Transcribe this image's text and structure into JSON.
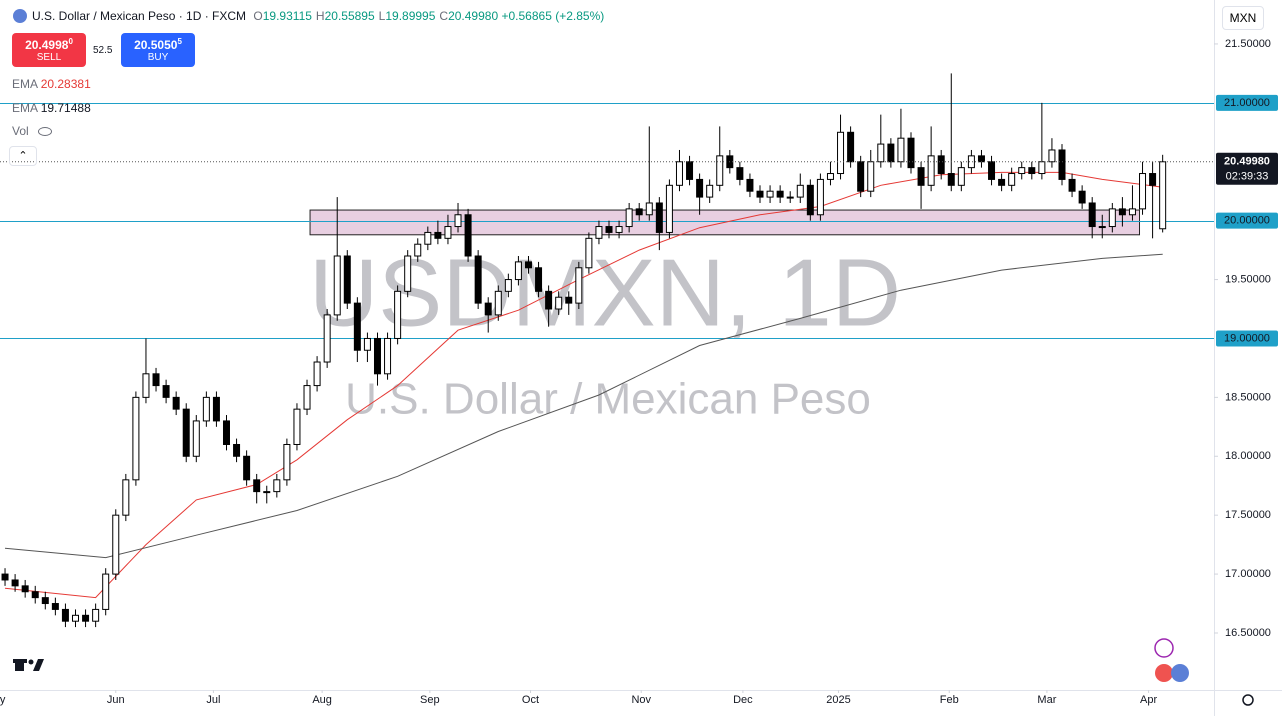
{
  "chart_data": {
    "type": "candlestick",
    "title": "USDMXN, 1D",
    "subtitle": "U.S. Dollar / Mexican Peso",
    "header": {
      "symbol": "U.S. Dollar / Mexican Peso · 1D · FXCM",
      "ohlc": [
        {
          "key": "O",
          "label": "19.93115"
        },
        {
          "key": "H",
          "label": "20.55895"
        },
        {
          "key": "L",
          "label": "19.89995"
        },
        {
          "key": "C",
          "label": "20.49980"
        }
      ],
      "change": "+0.56865",
      "change_pct": "(+2.85%)",
      "currency": "MXN"
    },
    "trade": {
      "sell": {
        "price": "20.4998",
        "pip": "0",
        "label": "SELL"
      },
      "spread": "52.5",
      "buy": {
        "price": "20.5050",
        "pip": "5",
        "label": "BUY"
      }
    },
    "indicators": {
      "vol": "Vol"
    },
    "open": [
      17.0,
      16.95,
      16.9,
      16.85,
      16.8,
      16.75,
      16.7,
      16.6,
      16.65,
      16.6,
      16.7,
      17.0,
      17.5,
      17.8,
      18.5,
      18.7,
      18.6,
      18.5,
      18.4,
      18.0,
      18.3,
      18.5,
      18.3,
      18.1,
      18.0,
      17.8,
      17.7,
      17.7,
      17.8,
      18.1,
      18.4,
      18.6,
      18.8,
      19.2,
      19.7,
      19.3,
      18.9,
      19.0,
      18.7,
      19.0,
      19.4,
      19.7,
      19.8,
      19.9,
      19.85,
      19.95,
      20.05,
      19.7,
      19.3,
      19.2,
      19.4,
      19.5,
      19.65,
      19.6,
      19.4,
      19.25,
      19.35,
      19.3,
      19.6,
      19.85,
      19.95,
      19.9,
      19.95,
      20.1,
      20.05,
      20.15,
      19.9,
      20.3,
      20.5,
      20.35,
      20.2,
      20.3,
      20.55,
      20.45,
      20.35,
      20.25,
      20.2,
      20.25,
      20.2,
      20.2,
      20.3,
      20.05,
      20.35,
      20.4,
      20.75,
      20.5,
      20.25,
      20.5,
      20.65,
      20.5,
      20.7,
      20.45,
      20.3,
      20.55,
      20.4,
      20.3,
      20.45,
      20.55,
      20.5,
      20.35,
      20.3,
      20.4,
      20.45,
      20.4,
      20.5,
      20.6,
      20.35,
      20.25,
      20.15,
      19.95,
      19.95,
      20.1,
      20.05,
      20.1,
      20.4,
      19.93115
    ],
    "high": [
      17.05,
      17.0,
      16.95,
      16.9,
      16.85,
      16.8,
      16.75,
      16.7,
      16.7,
      16.75,
      17.05,
      17.55,
      17.85,
      18.55,
      19.0,
      18.75,
      18.65,
      18.55,
      18.45,
      18.35,
      18.55,
      18.55,
      18.35,
      18.15,
      18.05,
      17.85,
      17.75,
      17.85,
      18.15,
      18.45,
      18.65,
      18.85,
      19.25,
      20.2,
      19.75,
      19.35,
      19.05,
      19.05,
      19.05,
      19.45,
      19.75,
      19.85,
      19.95,
      20.0,
      20.05,
      20.15,
      20.1,
      19.75,
      19.35,
      19.45,
      19.55,
      19.7,
      19.7,
      19.65,
      19.45,
      19.4,
      19.4,
      19.65,
      19.9,
      20.0,
      20.0,
      20.0,
      20.15,
      20.15,
      20.8,
      20.2,
      20.35,
      20.6,
      20.55,
      20.4,
      20.35,
      20.8,
      20.6,
      20.5,
      20.4,
      20.3,
      20.3,
      20.3,
      20.25,
      20.4,
      20.35,
      20.4,
      20.5,
      20.9,
      20.8,
      20.55,
      20.6,
      20.9,
      20.7,
      20.95,
      20.75,
      20.5,
      20.8,
      20.6,
      21.25,
      20.5,
      20.6,
      20.6,
      20.55,
      20.4,
      20.45,
      20.5,
      20.5,
      21.0,
      20.7,
      20.65,
      20.4,
      20.3,
      20.2,
      20.05,
      20.15,
      20.2,
      20.3,
      20.5,
      20.5,
      20.55895
    ],
    "low": [
      16.9,
      16.85,
      16.8,
      16.75,
      16.7,
      16.65,
      16.55,
      16.55,
      16.55,
      16.55,
      16.65,
      16.95,
      17.45,
      17.75,
      18.45,
      18.55,
      18.45,
      18.35,
      17.95,
      17.95,
      18.25,
      18.25,
      18.05,
      17.95,
      17.75,
      17.6,
      17.6,
      17.65,
      17.75,
      18.05,
      18.35,
      18.55,
      18.75,
      19.15,
      19.25,
      18.8,
      18.8,
      18.6,
      18.65,
      18.95,
      19.35,
      19.65,
      19.75,
      19.8,
      19.8,
      19.9,
      19.65,
      19.25,
      19.05,
      19.15,
      19.35,
      19.45,
      19.55,
      19.35,
      19.1,
      19.2,
      19.2,
      19.25,
      19.55,
      19.8,
      19.85,
      19.85,
      19.9,
      20.0,
      20.0,
      19.75,
      19.85,
      20.25,
      20.3,
      20.05,
      20.15,
      20.25,
      20.4,
      20.3,
      20.2,
      20.15,
      20.15,
      20.15,
      20.15,
      20.15,
      20.0,
      20.0,
      20.3,
      20.35,
      20.45,
      20.2,
      20.2,
      20.45,
      20.45,
      20.45,
      20.4,
      20.1,
      20.25,
      20.35,
      20.25,
      20.25,
      20.4,
      20.45,
      20.3,
      20.25,
      20.25,
      20.35,
      20.35,
      20.35,
      20.45,
      20.3,
      20.2,
      20.1,
      19.85,
      19.85,
      19.9,
      19.95,
      20.0,
      20.05,
      19.85,
      19.89995
    ],
    "close": [
      16.95,
      16.9,
      16.85,
      16.8,
      16.75,
      16.7,
      16.6,
      16.65,
      16.6,
      16.7,
      17.0,
      17.5,
      17.8,
      18.5,
      18.7,
      18.6,
      18.5,
      18.4,
      18.0,
      18.3,
      18.5,
      18.3,
      18.1,
      18.0,
      17.8,
      17.7,
      17.7,
      17.8,
      18.1,
      18.4,
      18.6,
      18.8,
      19.2,
      19.7,
      19.3,
      18.9,
      19.0,
      18.7,
      19.0,
      19.4,
      19.7,
      19.8,
      19.9,
      19.85,
      19.95,
      20.05,
      19.7,
      19.3,
      19.2,
      19.4,
      19.5,
      19.65,
      19.6,
      19.4,
      19.25,
      19.35,
      19.3,
      19.6,
      19.85,
      19.95,
      19.9,
      19.95,
      20.1,
      20.05,
      20.15,
      19.9,
      20.3,
      20.5,
      20.35,
      20.2,
      20.3,
      20.55,
      20.45,
      20.35,
      20.25,
      20.2,
      20.25,
      20.2,
      20.2,
      20.3,
      20.05,
      20.35,
      20.4,
      20.75,
      20.5,
      20.25,
      20.5,
      20.65,
      20.5,
      20.7,
      20.45,
      20.3,
      20.55,
      20.4,
      20.3,
      20.45,
      20.55,
      20.5,
      20.35,
      20.3,
      20.4,
      20.45,
      20.4,
      20.5,
      20.6,
      20.35,
      20.25,
      20.15,
      19.95,
      19.95,
      20.1,
      20.05,
      20.1,
      20.4,
      20.3,
      20.4998
    ],
    "colors": {
      "up": "#ffffff",
      "down": "#000000",
      "border": "#000000"
    },
    "ema": [
      {
        "name": "EMA",
        "color": "#e53935",
        "value_label": "20.28381",
        "x": [
          0,
          9,
          14,
          19,
          25,
          29,
          34,
          39,
          45,
          51,
          57,
          63,
          69,
          75,
          81,
          87,
          93,
          99,
          105,
          109,
          115
        ],
        "values": [
          16.88,
          16.8,
          17.25,
          17.63,
          17.76,
          17.97,
          18.31,
          18.6,
          19.07,
          19.24,
          19.5,
          19.75,
          19.94,
          20.05,
          20.12,
          20.3,
          20.39,
          20.41,
          20.41,
          20.35,
          20.28381
        ]
      },
      {
        "name": "EMA",
        "color": "#555555",
        "value_label": "19.71488",
        "x": [
          0,
          10,
          19,
          29,
          39,
          49,
          59,
          69,
          79,
          89,
          99,
          109,
          115
        ],
        "values": [
          17.22,
          17.14,
          17.33,
          17.54,
          17.83,
          18.21,
          18.52,
          18.94,
          19.17,
          19.41,
          19.58,
          19.68,
          19.71488
        ]
      }
    ],
    "levels": [
      {
        "value": 21,
        "label": "21.00000"
      },
      {
        "value": 20,
        "label": "20.00000"
      },
      {
        "value": 19,
        "label": "19.00000"
      }
    ],
    "level_color": "#1fa0c8",
    "last_price": {
      "value": 20.4998,
      "label": "20.49980",
      "countdown": "02:39:33"
    },
    "zone": {
      "x": [
        30.3,
        112.7
      ],
      "y": [
        19.88,
        20.09
      ],
      "color": "#e2c3d9"
    },
    "xlim": [
      -0.5,
      120.1
    ],
    "ylim": [
      16.016,
      21.873
    ],
    "xticks": [
      {
        "value": -1,
        "label": "May"
      },
      {
        "value": 11,
        "label": "Jun"
      },
      {
        "value": 20.7,
        "label": "Jul"
      },
      {
        "value": 31.5,
        "label": "Aug"
      },
      {
        "value": 42.2,
        "label": "Sep"
      },
      {
        "value": 52.2,
        "label": "Oct"
      },
      {
        "value": 63.2,
        "label": "Nov"
      },
      {
        "value": 73.3,
        "label": "Dec"
      },
      {
        "value": 82.8,
        "label": "2025"
      },
      {
        "value": 93.8,
        "label": "Feb"
      },
      {
        "value": 103.5,
        "label": "Mar"
      },
      {
        "value": 113.6,
        "label": "Apr"
      }
    ],
    "yticks": [
      {
        "value": 16.5,
        "label": "16.50000"
      },
      {
        "value": 17,
        "label": "17.00000"
      },
      {
        "value": 17.5,
        "label": "17.50000"
      },
      {
        "value": 18,
        "label": "18.00000"
      },
      {
        "value": 18.5,
        "label": "18.50000"
      },
      {
        "value": 19.5,
        "label": "19.50000"
      },
      {
        "value": 21.5,
        "label": "21.50000"
      }
    ],
    "grid": false
  }
}
